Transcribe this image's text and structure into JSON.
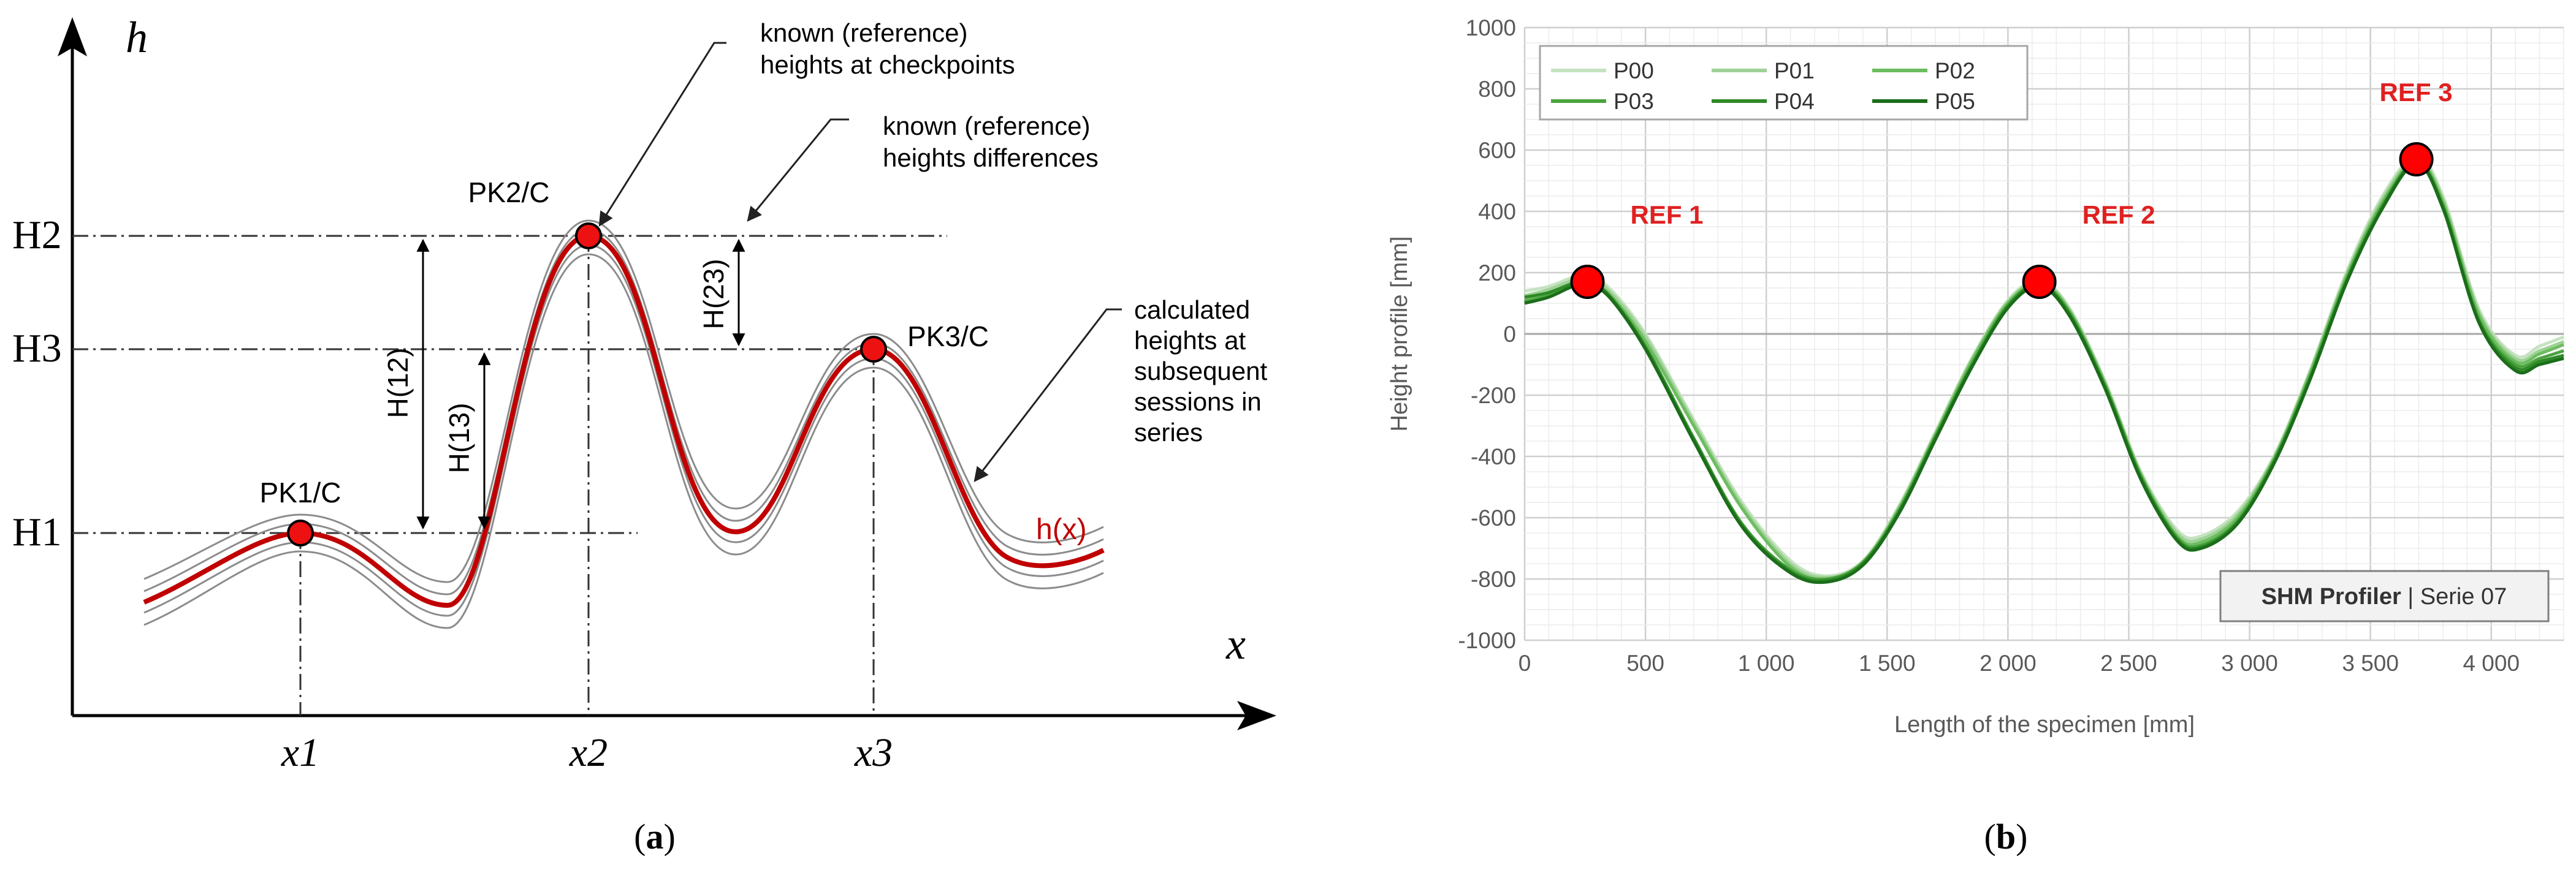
{
  "panel_a": {
    "caption": "(a)",
    "axis_x": "x",
    "axis_h": "h",
    "levels": [
      "H1",
      "H2",
      "H3"
    ],
    "x_ticks": [
      "x1",
      "x2",
      "x3"
    ],
    "checkpoints": [
      "PK1/C",
      "PK2/C",
      "PK3/C"
    ],
    "intervals": [
      "H(12)",
      "H(13)",
      "H(23)"
    ],
    "curve_label": "h(x)",
    "annotations": {
      "ref_heights": [
        "known (reference)",
        "heights at checkpoints"
      ],
      "ref_diffs": [
        "known (reference)",
        "heights differences"
      ],
      "calculated": [
        "calculated",
        "heights at",
        "subsequent",
        "sessions in",
        "series"
      ]
    },
    "colors": {
      "curve": "#c00000",
      "lines": "#8c8c8c"
    }
  },
  "panel_b": {
    "caption": "(b)",
    "badge_bold": "SHM Profiler",
    "badge_rest": " | Serie 07",
    "ref_labels": [
      "REF 1",
      "REF 2",
      "REF 3"
    ],
    "chart_data": {
      "type": "line",
      "title": "",
      "xlabel": "Length of the specimen [mm]",
      "ylabel": "Height profile [mm]",
      "xlim": [
        0,
        4300
      ],
      "ylim": [
        -1000,
        1000
      ],
      "x_ticks": [
        0,
        500,
        1000,
        1500,
        2000,
        2500,
        3000,
        3500,
        4000
      ],
      "x_tick_labels": [
        "0",
        "500",
        "1 000",
        "1 500",
        "2 000",
        "2 500",
        "3 000",
        "3 500",
        "4 000"
      ],
      "y_ticks": [
        -1000,
        -800,
        -600,
        -400,
        -200,
        0,
        200,
        400,
        600,
        800,
        1000
      ],
      "y_tick_labels": [
        "-1000",
        "-800",
        "-600",
        "-400",
        "-200",
        "0",
        "200",
        "400",
        "600",
        "800",
        "1000"
      ],
      "grid": true,
      "legend_position": "top-left",
      "x": [
        0,
        100,
        200,
        260,
        350,
        500,
        700,
        900,
        1100,
        1250,
        1400,
        1550,
        1700,
        1850,
        2000,
        2130,
        2250,
        2400,
        2550,
        2700,
        2800,
        2950,
        3100,
        3250,
        3400,
        3550,
        3690,
        3800,
        3950,
        4100,
        4200,
        4300
      ],
      "series": [
        {
          "name": "P00",
          "color": "#c5e3c0",
          "values": [
            140,
            155,
            185,
            190,
            150,
            0,
            -280,
            -550,
            -740,
            -790,
            -740,
            -560,
            -320,
            -80,
            110,
            175,
            90,
            -150,
            -450,
            -640,
            -660,
            -580,
            -400,
            -120,
            200,
            450,
            580,
            450,
            80,
            -70,
            -40,
            -10
          ]
        },
        {
          "name": "P01",
          "color": "#9fd296",
          "values": [
            125,
            145,
            175,
            180,
            140,
            -10,
            -290,
            -560,
            -750,
            -795,
            -745,
            -565,
            -325,
            -85,
            105,
            170,
            85,
            -155,
            -455,
            -650,
            -670,
            -590,
            -405,
            -125,
            190,
            440,
            570,
            440,
            70,
            -80,
            -55,
            -25
          ]
        },
        {
          "name": "P02",
          "color": "#6cbd60",
          "values": [
            110,
            130,
            165,
            170,
            130,
            -25,
            -300,
            -570,
            -760,
            -800,
            -750,
            -570,
            -330,
            -90,
            100,
            165,
            80,
            -160,
            -460,
            -660,
            -680,
            -600,
            -410,
            -130,
            185,
            430,
            565,
            430,
            60,
            -90,
            -65,
            -35
          ]
        },
        {
          "name": "P03",
          "color": "#4ca33f",
          "values": [
            105,
            125,
            160,
            165,
            125,
            -40,
            -340,
            -620,
            -770,
            -800,
            -745,
            -575,
            -335,
            -100,
            95,
            160,
            75,
            -165,
            -465,
            -665,
            -690,
            -610,
            -415,
            -140,
            175,
            420,
            560,
            420,
            45,
            -100,
            -80,
            -55
          ]
        },
        {
          "name": "P04",
          "color": "#2e8a27",
          "values": [
            120,
            135,
            165,
            170,
            125,
            -45,
            -345,
            -625,
            -775,
            -805,
            -750,
            -580,
            -340,
            -105,
            90,
            160,
            70,
            -170,
            -470,
            -670,
            -695,
            -615,
            -420,
            -145,
            170,
            415,
            560,
            415,
            40,
            -110,
            -90,
            -70
          ]
        },
        {
          "name": "P05",
          "color": "#1b6d1a",
          "values": [
            100,
            120,
            155,
            160,
            120,
            -50,
            -350,
            -630,
            -780,
            -810,
            -755,
            -585,
            -345,
            -110,
            85,
            155,
            65,
            -175,
            -475,
            -675,
            -700,
            -620,
            -425,
            -150,
            165,
            410,
            555,
            410,
            35,
            -120,
            -100,
            -80
          ]
        }
      ],
      "ref_points": [
        {
          "label": "REF 1",
          "x": 260,
          "y": 170
        },
        {
          "label": "REF 2",
          "x": 2130,
          "y": 170
        },
        {
          "label": "REF 3",
          "x": 3690,
          "y": 570
        }
      ]
    }
  }
}
